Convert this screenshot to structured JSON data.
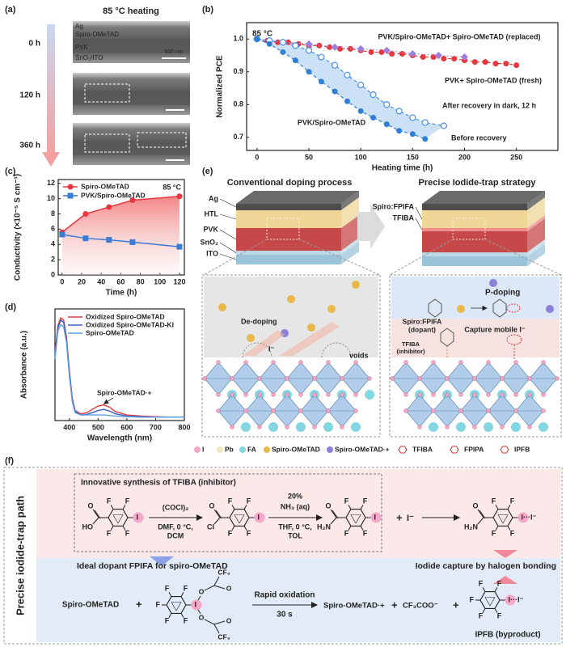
{
  "figure": {
    "panel_a": {
      "label": "(a)",
      "title": "85 °C heating",
      "times": [
        "0 h",
        "120 h",
        "360 h"
      ],
      "layers": [
        "Ag",
        "Spiro-OMeTAD",
        "PVK",
        "SnO₂/ITO"
      ],
      "scale_bar": "500 nm"
    },
    "panel_e": {
      "label": "(e)",
      "left_title": "Conventional doping process",
      "right_title": "Precise Iodide-trap strategy",
      "left_layers": [
        "Ag",
        "HTL",
        "PVK",
        "SnO₂",
        "ITO"
      ],
      "right_layers": [
        "Spiro:FPIFA",
        "TFIBA"
      ],
      "left_zoom": {
        "de_doping": "De-doping",
        "iodide": "I⁻",
        "voids": "voids"
      },
      "right_zoom": {
        "p_doping": "P-doping",
        "dopant": [
          "Spiro:FPIFA",
          "(dopant)"
        ],
        "capture": "Capture mobile I⁻",
        "inhibitor": [
          "TFIBA",
          "(inhibitor)"
        ]
      },
      "legend": [
        "I",
        "Pb",
        "FA",
        "Spiro-OMeTAD",
        "Spiro-OMeTAD·+",
        "TFIBA",
        "FPIPA",
        "IPFB"
      ]
    },
    "panel_f": {
      "label": "(f)",
      "side_title": "Precise iodide-trap path",
      "synthesis": {
        "title": "Innovative synthesis of TFIBA (inhibitor)",
        "molecules": [
          {
            "F": [
              "F",
              "F",
              "F",
              "F"
            ],
            "left": "HO",
            "carbonyl": "O",
            "right": "I"
          },
          {
            "F": [
              "F",
              "F",
              "F",
              "F"
            ],
            "left": "Cl",
            "carbonyl": "O",
            "right": "I"
          },
          {
            "F": [
              "F",
              "F",
              "F",
              "F"
            ],
            "left": "H₂N",
            "carbonyl": "O",
            "right": "I"
          }
        ],
        "step1": [
          "(COCl)₂",
          "DMF, 0 °C,",
          "DCM"
        ],
        "step2": [
          "20%",
          "NH₃ (aq)",
          "THF, 0 °C,",
          "TOL"
        ],
        "plus": "+",
        "iodide": "I⁻",
        "product": {
          "F": [
            "F",
            "F",
            "F",
            "F"
          ],
          "left": "H₂N",
          "carbonyl": "O",
          "right": "I···I⁻"
        }
      },
      "dopant_label": "Ideal dopant FPIFA for spiro-OMeTAD",
      "capture_label": "Iodide capture by halogen bonding",
      "oxidation": {
        "reactant": "Spiro-OMeTAD",
        "plus": [
          "+",
          "+",
          "+"
        ],
        "dopant": {
          "F": [
            "F",
            "F",
            "F",
            "F"
          ],
          "left": "F",
          "right": "I",
          "groups": [
            "CF₃",
            "O",
            "O",
            "O",
            "O",
            "CF₃"
          ]
        },
        "conditions": [
          "Rapid oxidation",
          "30 s"
        ],
        "cation": "Spiro-OMeTAD·+",
        "anion": "CF₃COO⁻",
        "byproduct": {
          "F": [
            "F",
            "F",
            "F",
            "F"
          ],
          "left": "F",
          "right": "I···I⁻"
        },
        "byproduct_label": "IPFB (byproduct)"
      }
    }
  },
  "chart_data": [
    {
      "type": "line",
      "panel": "(b)",
      "x_label": "Heating time (h)",
      "y_label": "Normalized PCE",
      "annotation": "85 °C",
      "region_label": "PVK/Spiro-OMeTAD",
      "xlim": [
        -10,
        290
      ],
      "xticks": [
        0,
        50,
        100,
        150,
        200,
        250
      ],
      "ylim": [
        0.66,
        1.05
      ],
      "yticks": [
        0.7,
        0.8,
        0.9,
        {
          "value": 1,
          "label": "1.0"
        }
      ],
      "series": [
        {
          "name": "PVK/Spiro-OMeTAD+ Spiro-OMeTAD (replaced)",
          "color": "#e8383d",
          "marker": "circle",
          "line_style": "dashed",
          "x": [
            0,
            10,
            20,
            30,
            40,
            50,
            60,
            70,
            80,
            90,
            100,
            110,
            120,
            130,
            140,
            150,
            160,
            170,
            180,
            190,
            200,
            210,
            220,
            230,
            240,
            250
          ],
          "values": [
            1.0,
            0.995,
            0.99,
            0.99,
            0.985,
            0.98,
            0.98,
            0.975,
            0.97,
            0.97,
            0.965,
            0.96,
            0.96,
            0.955,
            0.955,
            0.95,
            0.945,
            0.945,
            0.94,
            0.94,
            0.935,
            0.93,
            0.93,
            0.925,
            0.925,
            0.92
          ]
        },
        {
          "name": "PVK+ Spiro-OMeTAD (fresh)",
          "color": "#9b7fe0",
          "marker": "diamond",
          "line_style": "dotted",
          "x": [
            0,
            25,
            50,
            75,
            100,
            125,
            150,
            175,
            200
          ],
          "values": [
            1.0,
            0.99,
            0.985,
            0.975,
            0.97,
            0.965,
            0.955,
            0.95,
            0.945
          ]
        },
        {
          "name": "Before recovery",
          "color": "#2f7fd6",
          "marker": "circle",
          "line_style": "dashed",
          "x": [
            0,
            12,
            25,
            37,
            50,
            62,
            75,
            87,
            100,
            112,
            125,
            137,
            150,
            162
          ],
          "values": [
            1.0,
            0.985,
            0.96,
            0.935,
            0.9,
            0.87,
            0.84,
            0.81,
            0.78,
            0.76,
            0.74,
            0.72,
            0.71,
            0.695
          ]
        },
        {
          "name": "After recovery in dark, 12 h",
          "color": "#4a90e2",
          "marker": "open",
          "line_style": "dashed",
          "x": [
            0,
            12,
            25,
            37,
            50,
            62,
            75,
            87,
            100,
            112,
            125,
            137,
            150,
            162,
            180
          ],
          "values": [
            1.0,
            0.995,
            0.99,
            0.98,
            0.965,
            0.945,
            0.92,
            0.89,
            0.86,
            0.83,
            0.8,
            0.78,
            0.76,
            0.745,
            0.735
          ]
        }
      ]
    },
    {
      "type": "line",
      "panel": "(c)",
      "x_label": "Time (h)",
      "y_label": "Conductivity (×10⁻⁵ S cm⁻¹)",
      "annotation": "85 °C",
      "legend": "upper left",
      "xlim": [
        -4,
        125
      ],
      "xticks": [
        0,
        20,
        40,
        60,
        80,
        100,
        120
      ],
      "ylim": [
        0,
        12.5
      ],
      "yticks": [
        0,
        2,
        4,
        6,
        8,
        10,
        12
      ],
      "x": [
        0,
        24,
        48,
        72,
        120
      ],
      "series": [
        {
          "name": "Spiro-OMeTAD",
          "color": "#e8383d",
          "marker": "circle",
          "line_style": "solid",
          "values": [
            5.6,
            8.0,
            8.9,
            9.8,
            10.3
          ]
        },
        {
          "name": "PVK/Spiro-OMeTAD",
          "color": "#3a7bd5",
          "marker": "square",
          "line_style": "solid",
          "values": [
            5.3,
            4.8,
            4.6,
            4.3,
            3.7
          ]
        }
      ]
    },
    {
      "type": "line",
      "panel": "(d)",
      "x_label": "Wavelength (nm)",
      "y_label": "Absorbance (a.u.)",
      "annotation": "Spiro-OMeTAD·+",
      "legend": "upper right",
      "xlim": [
        350,
        800
      ],
      "xticks": [
        400,
        500,
        600,
        700,
        800
      ],
      "ylim": [
        0,
        1
      ],
      "x": [
        350,
        360,
        370,
        380,
        390,
        400,
        410,
        420,
        440,
        460,
        480,
        500,
        520,
        540,
        560,
        600,
        650,
        700,
        750,
        800
      ],
      "series": [
        {
          "name": "Oxidized Spiro-OMeTAD",
          "color": "#e8383d",
          "line_style": "solid",
          "values": [
            0.6,
            0.85,
            0.92,
            0.9,
            0.75,
            0.45,
            0.2,
            0.09,
            0.06,
            0.07,
            0.1,
            0.13,
            0.14,
            0.12,
            0.08,
            0.05,
            0.04,
            0.035,
            0.03,
            0.03
          ]
        },
        {
          "name": "Oxidized Spiro-OMeTAD-KI",
          "color": "#3b5fc0",
          "line_style": "solid",
          "values": [
            0.58,
            0.83,
            0.9,
            0.88,
            0.73,
            0.43,
            0.19,
            0.08,
            0.05,
            0.055,
            0.07,
            0.09,
            0.1,
            0.085,
            0.06,
            0.04,
            0.035,
            0.03,
            0.03,
            0.03
          ]
        },
        {
          "name": "Spiro-OMeTAD",
          "color": "#5aa0e6",
          "line_style": "solid",
          "values": [
            0.55,
            0.8,
            0.86,
            0.84,
            0.7,
            0.4,
            0.17,
            0.07,
            0.05,
            0.05,
            0.05,
            0.05,
            0.05,
            0.045,
            0.04,
            0.035,
            0.03,
            0.03,
            0.03,
            0.03
          ]
        }
      ]
    }
  ]
}
